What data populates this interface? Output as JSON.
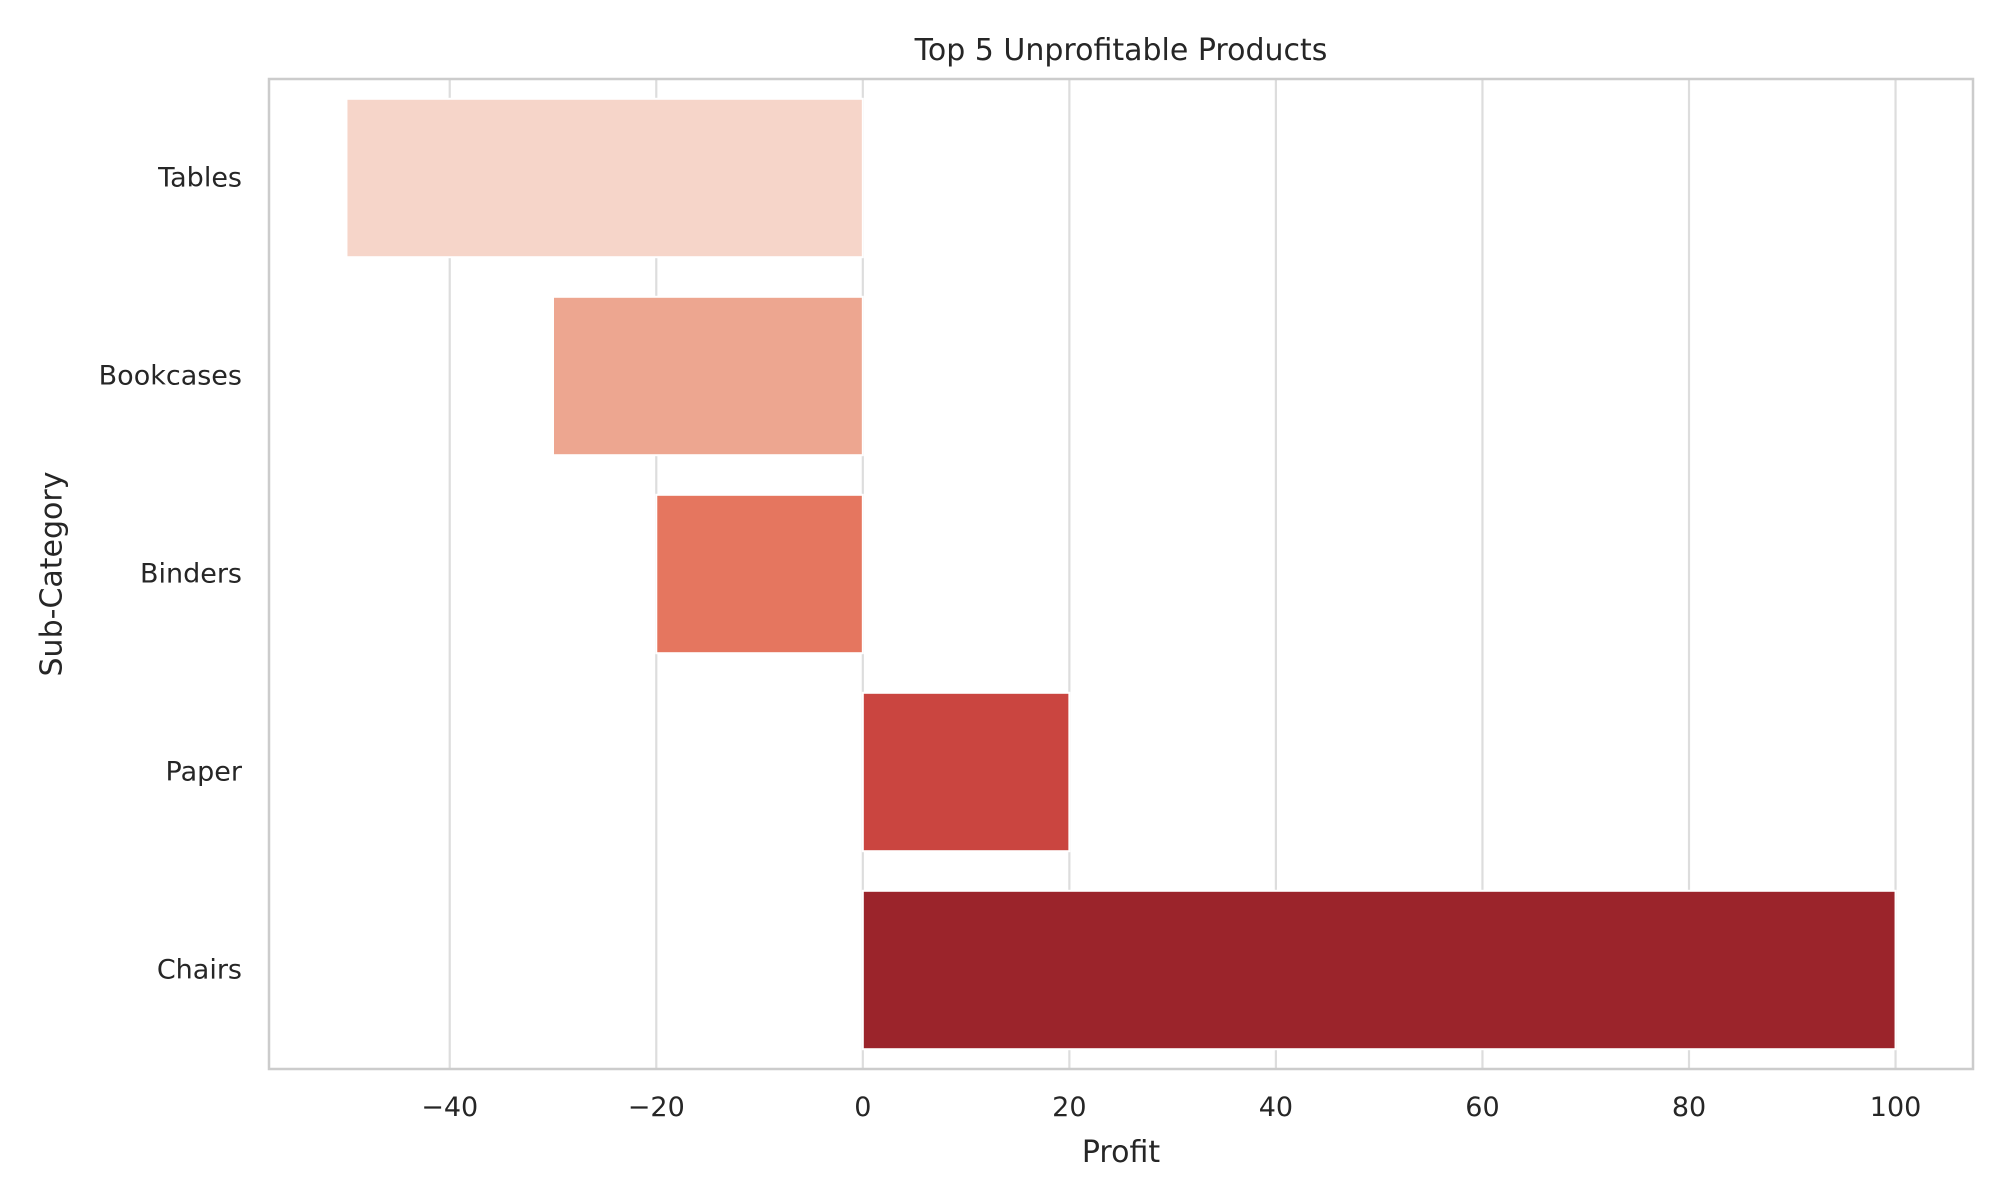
{
  "chart_data": {
    "type": "bar",
    "orientation": "horizontal",
    "title": "Top 5 Unprofitable Products",
    "xlabel": "Profit",
    "ylabel": "Sub-Category",
    "categories": [
      "Tables",
      "Bookcases",
      "Binders",
      "Paper",
      "Chairs"
    ],
    "values": [
      -50,
      -30,
      -20,
      20,
      100
    ],
    "bar_colors": [
      "#f6d5c9",
      "#eda690",
      "#e5765f",
      "#ca4540",
      "#9b242b"
    ],
    "xlim": [
      -57.5,
      107.5
    ],
    "xticks": [
      -40,
      -20,
      0,
      20,
      40,
      60,
      80,
      100
    ],
    "xtick_labels": [
      "−40",
      "−20",
      "0",
      "20",
      "40",
      "60",
      "80",
      "100"
    ],
    "grid": true
  }
}
